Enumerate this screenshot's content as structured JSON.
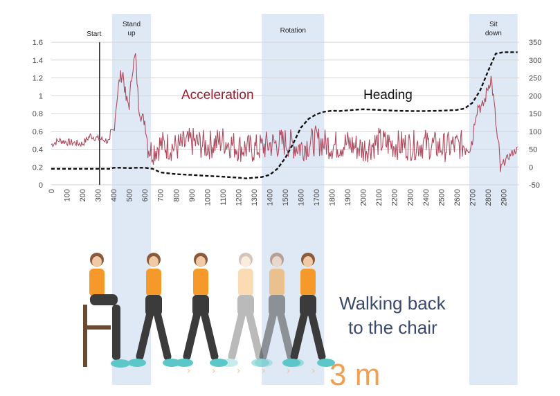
{
  "chart_data": {
    "type": "line",
    "title": "",
    "xlabel": "",
    "ylabel": "",
    "xlim": [
      0,
      3000
    ],
    "ylim": [
      0,
      1.6
    ],
    "y2lim": [
      -50,
      350
    ],
    "x_ticks": [
      0,
      100,
      200,
      300,
      400,
      500,
      600,
      700,
      800,
      900,
      1000,
      1100,
      1200,
      1300,
      1400,
      1500,
      1600,
      1700,
      1800,
      1900,
      2000,
      2100,
      2200,
      2300,
      2400,
      2500,
      2600,
      2700,
      2800,
      2900
    ],
    "y_ticks": [
      "0",
      "0.2",
      "0.4",
      "0.6",
      "0.8",
      "1",
      "1.2",
      "1.4",
      "1.6"
    ],
    "y2_ticks": [
      "-50",
      "0",
      "50",
      "100",
      "150",
      "200",
      "250",
      "300",
      "350"
    ],
    "grid": true,
    "legend": "none",
    "colors": {
      "acceleration": "#b04a5e",
      "heading": "#111111",
      "band": "#dfe8f5"
    },
    "phases": [
      {
        "name": "Stand up",
        "label_lines": [
          "Stand",
          "up"
        ],
        "start": 390,
        "end": 640
      },
      {
        "name": "Rotation",
        "label_lines": [
          "Rotation"
        ],
        "start": 1350,
        "end": 1750
      },
      {
        "name": "Sit down",
        "label_lines": [
          "Sit",
          "down"
        ],
        "start": 2680,
        "end": 2990
      }
    ],
    "start_marker": {
      "label": "Start",
      "x": 310
    },
    "series": [
      {
        "name": "Acceleration",
        "axis": "left",
        "style": "solid",
        "x": [
          0,
          50,
          100,
          150,
          200,
          250,
          300,
          350,
          380,
          400,
          420,
          440,
          460,
          480,
          500,
          520,
          540,
          560,
          580,
          600,
          620,
          640,
          660,
          700,
          800,
          900,
          1000,
          1100,
          1200,
          1300,
          1400,
          1500,
          1600,
          1700,
          1800,
          1900,
          2000,
          2100,
          2200,
          2300,
          2400,
          2500,
          2600,
          2650,
          2700,
          2720,
          2740,
          2760,
          2780,
          2800,
          2820,
          2840,
          2860,
          2880,
          2900,
          2950,
          2990
        ],
        "y": [
          0.45,
          0.5,
          0.48,
          0.47,
          0.46,
          0.55,
          0.52,
          0.5,
          0.47,
          0.6,
          0.95,
          1.2,
          1.25,
          0.95,
          0.9,
          1.3,
          1.45,
          0.9,
          0.75,
          0.72,
          0.45,
          0.38,
          0.4,
          0.45,
          0.42,
          0.48,
          0.44,
          0.5,
          0.42,
          0.4,
          0.45,
          0.48,
          0.42,
          0.5,
          0.44,
          0.46,
          0.4,
          0.48,
          0.45,
          0.44,
          0.46,
          0.42,
          0.44,
          0.45,
          0.5,
          0.8,
          0.9,
          0.85,
          0.95,
          1.1,
          1.2,
          0.9,
          0.5,
          0.18,
          0.25,
          0.35,
          0.4
        ]
      },
      {
        "name": "Heading",
        "axis": "right",
        "style": "dashed",
        "x": [
          0,
          300,
          380,
          400,
          450,
          500,
          550,
          600,
          650,
          700,
          800,
          900,
          1000,
          1100,
          1200,
          1250,
          1300,
          1350,
          1400,
          1450,
          1500,
          1550,
          1600,
          1650,
          1700,
          1750,
          1800,
          1850,
          1900,
          2000,
          2100,
          2200,
          2300,
          2400,
          2500,
          2600,
          2650,
          2700,
          2750,
          2800,
          2850,
          2900,
          2950,
          2990
        ],
        "y": [
          -5,
          -5,
          -5,
          -2,
          -2,
          -3,
          -2,
          -2,
          -5,
          -15,
          -20,
          -22,
          -25,
          -27,
          -30,
          -32,
          -30,
          -28,
          -22,
          -5,
          25,
          65,
          110,
          135,
          148,
          155,
          158,
          157,
          159,
          162,
          160,
          158,
          157,
          157,
          158,
          160,
          164,
          180,
          215,
          268,
          318,
          322,
          322,
          322
        ]
      }
    ],
    "annotations": {
      "acceleration_label": "Acceleration",
      "heading_label": "Heading",
      "caption_line1": "Walking back",
      "caption_line2": "to the chair",
      "distance": "3 m"
    }
  }
}
